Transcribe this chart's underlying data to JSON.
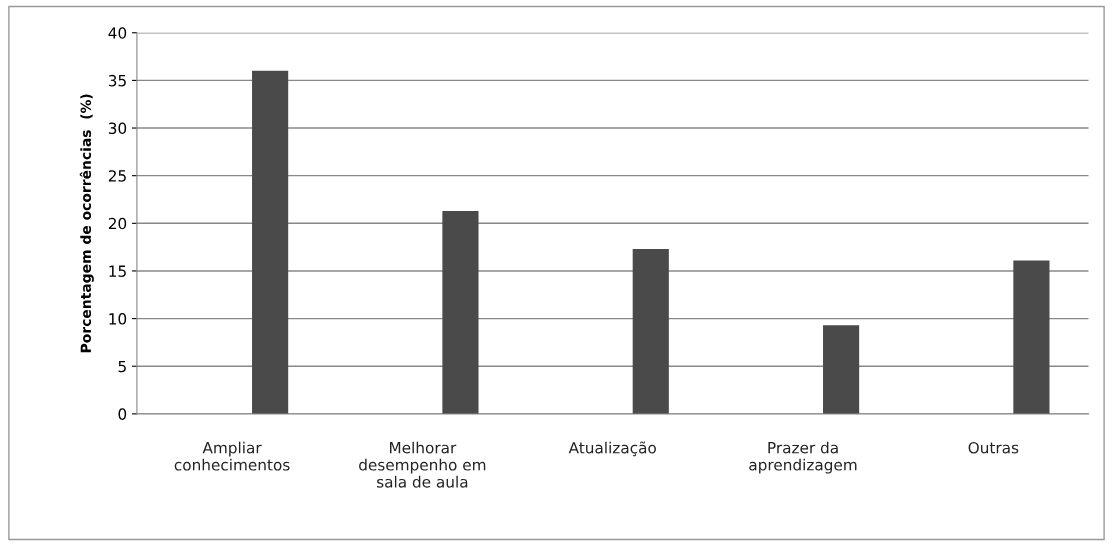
{
  "chart_data": {
    "type": "bar",
    "ylabel": "Porcentagem de ocorrências  (%)",
    "categories": [
      "Ampliar\nconhecimentos",
      "Melhorar\ndesempenho em\nsala de aula",
      "Atualização",
      "Prazer da\naprendizagem",
      "Outras"
    ],
    "values": [
      36.0,
      21.3,
      17.3,
      9.3,
      16.1
    ],
    "color": "#4a4a4a",
    "ylim": [
      0,
      40
    ],
    "yticks": [
      0,
      5,
      10,
      15,
      20,
      25,
      30,
      35,
      40
    ],
    "grid": "y"
  }
}
